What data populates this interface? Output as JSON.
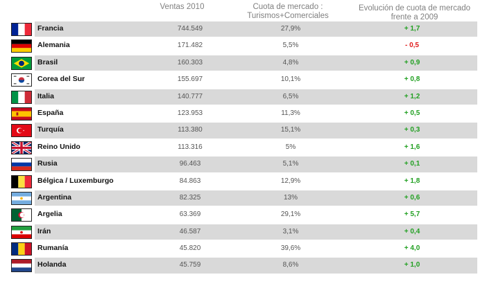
{
  "headers": {
    "ventas": "Ventas 2010",
    "cuota_line1": "Cuota de mercado :",
    "cuota_line2": "Turismos+Comerciales",
    "evol_line1": "Evolución de cuota de mercado",
    "evol_line2": "frente a 2009"
  },
  "rows": [
    {
      "country": "Francia",
      "ventas": "744.549",
      "cuota": "27,9%",
      "evolucion": "+ 1,7",
      "trend": "positive",
      "flag": "france-flag-icon"
    },
    {
      "country": "Alemania",
      "ventas": "171.482",
      "cuota": "5,5%",
      "evolucion": "- 0,5",
      "trend": "negative",
      "flag": "germany-flag-icon"
    },
    {
      "country": "Brasil",
      "ventas": "160.303",
      "cuota": "4,8%",
      "evolucion": "+ 0,9",
      "trend": "positive",
      "flag": "brazil-flag-icon"
    },
    {
      "country": "Corea del Sur",
      "ventas": "155.697",
      "cuota": "10,1%",
      "evolucion": "+ 0,8",
      "trend": "positive",
      "flag": "south-korea-flag-icon"
    },
    {
      "country": "Italia",
      "ventas": "140.777",
      "cuota": "6,5%",
      "evolucion": "+ 1,2",
      "trend": "positive",
      "flag": "italy-flag-icon"
    },
    {
      "country": "España",
      "ventas": "123.953",
      "cuota": "11,3%",
      "evolucion": "+ 0,5",
      "trend": "positive",
      "flag": "spain-flag-icon"
    },
    {
      "country": "Turquía",
      "ventas": "113.380",
      "cuota": "15,1%",
      "evolucion": "+ 0,3",
      "trend": "positive",
      "flag": "turkey-flag-icon"
    },
    {
      "country": "Reino Unido",
      "ventas": "113.316",
      "cuota": "5%",
      "evolucion": "+ 1,6",
      "trend": "positive",
      "flag": "uk-flag-icon"
    },
    {
      "country": "Rusia",
      "ventas": "96.463",
      "cuota": "5,1%",
      "evolucion": "+ 0,1",
      "trend": "positive",
      "flag": "russia-flag-icon"
    },
    {
      "country": "Bélgica / Luxemburgo",
      "ventas": "84.863",
      "cuota": "12,9%",
      "evolucion": "+ 1,8",
      "trend": "positive",
      "flag": "belgium-flag-icon"
    },
    {
      "country": "Argentina",
      "ventas": "82.325",
      "cuota": "13%",
      "evolucion": "+ 0,6",
      "trend": "positive",
      "flag": "argentina-flag-icon"
    },
    {
      "country": "Argelia",
      "ventas": "63.369",
      "cuota": "29,1%",
      "evolucion": "+ 5,7",
      "trend": "positive",
      "flag": "algeria-flag-icon"
    },
    {
      "country": "Irán",
      "ventas": "46.587",
      "cuota": "3,1%",
      "evolucion": "+ 0,4",
      "trend": "positive",
      "flag": "iran-flag-icon"
    },
    {
      "country": "Rumanía",
      "ventas": "45.820",
      "cuota": "39,6%",
      "evolucion": "+ 4,0",
      "trend": "positive",
      "flag": "romania-flag-icon"
    },
    {
      "country": "Holanda",
      "ventas": "45.759",
      "cuota": "8,6%",
      "evolucion": "+ 1,0",
      "trend": "positive",
      "flag": "netherlands-flag-icon"
    }
  ],
  "colors": {
    "row_shade": "#d9d9d9",
    "positive": "#22a022",
    "negative": "#e01a1a",
    "header": "#808080"
  }
}
